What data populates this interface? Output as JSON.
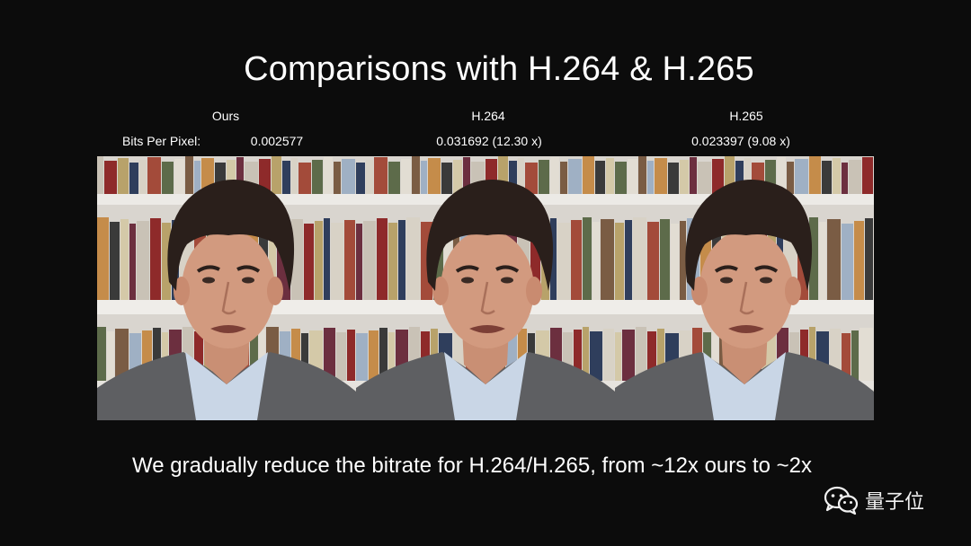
{
  "slide": {
    "title": "Comparisons with H.264 & H.265",
    "caption": "We gradually reduce the bitrate for H.264/H.265, from ~12x ours to ~2x"
  },
  "bpp_label": "Bits Per Pixel:",
  "columns": [
    {
      "label": "Ours",
      "bpp": "0.002577"
    },
    {
      "label": "H.264",
      "bpp": "0.031692 (12.30 x)"
    },
    {
      "label": "H.265",
      "bpp": "0.023397 (9.08 x)"
    }
  ],
  "watermark": {
    "text": "量子位",
    "icon": "wechat-icon"
  },
  "colors": {
    "background": "#0c0c0c",
    "text": "#ffffff"
  }
}
